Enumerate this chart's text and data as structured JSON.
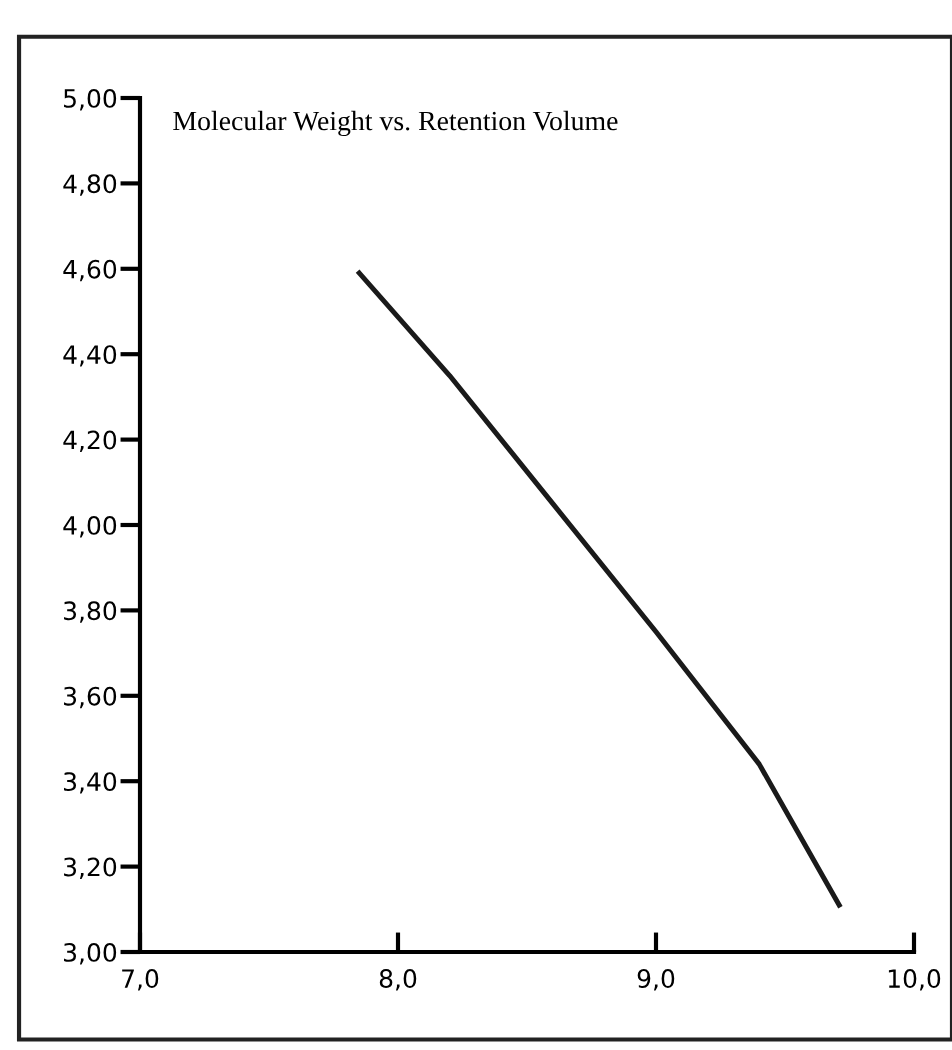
{
  "chart_data": {
    "type": "line",
    "title": "Molecular Weight vs. Retention Volume",
    "x": [
      7.85,
      8.2,
      8.6,
      9.0,
      9.4,
      9.71
    ],
    "series": [
      {
        "color": "#1a1a1a",
        "values": [
          4.59,
          4.35,
          4.05,
          3.75,
          3.44,
          3.11
        ]
      }
    ],
    "xlim": [
      7.0,
      10.0
    ],
    "xticks": [
      {
        "value": 7.0,
        "label": "7,0"
      },
      {
        "value": 8.0,
        "label": "8,0"
      },
      {
        "value": 9.0,
        "label": "9,0"
      },
      {
        "value": 10.0,
        "label": "10,0"
      }
    ],
    "ylim": [
      3.0,
      5.0
    ],
    "yticks": [
      {
        "value": 3.0,
        "label": "3,00"
      },
      {
        "value": 3.2,
        "label": "3,20"
      },
      {
        "value": 3.4,
        "label": "3,40"
      },
      {
        "value": 3.6,
        "label": "3,60"
      },
      {
        "value": 3.8,
        "label": "3,80"
      },
      {
        "value": 4.0,
        "label": "4,00"
      },
      {
        "value": 4.2,
        "label": "4,20"
      },
      {
        "value": 4.4,
        "label": "4,40"
      },
      {
        "value": 4.6,
        "label": "4,60"
      },
      {
        "value": 4.8,
        "label": "4,80"
      },
      {
        "value": 5.0,
        "label": "5,00"
      }
    ],
    "grid": false,
    "legend": false
  }
}
